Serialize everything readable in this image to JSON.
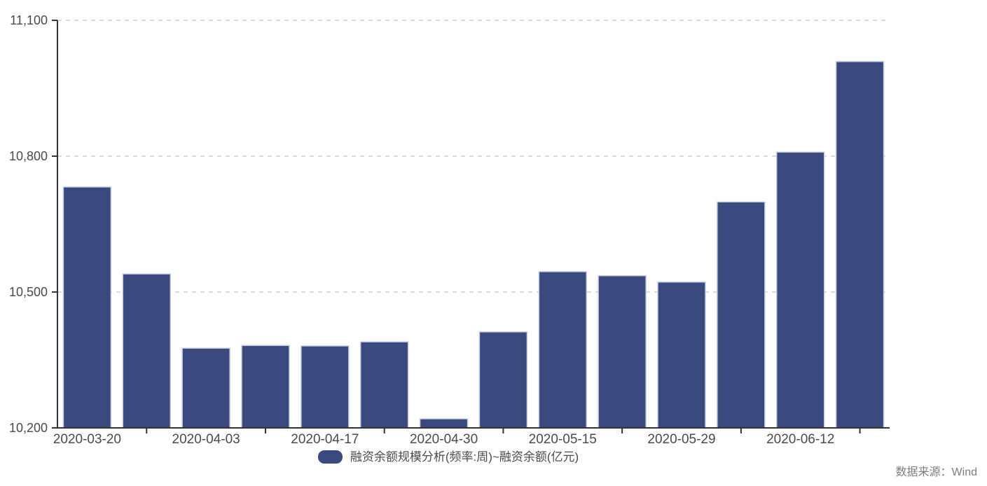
{
  "chart_data": {
    "type": "bar",
    "title": "",
    "series_name": "融资余额规模分析(频率:周)~融资余额(亿元)",
    "ylabel": "",
    "xlabel": "",
    "unit": "亿元",
    "values": [
      10732,
      10540,
      10376,
      10382,
      10381,
      10390,
      10220,
      10412,
      10545,
      10536,
      10522,
      10699,
      10809,
      11009
    ],
    "x_tick_labels": [
      "2020-03-20",
      "2020-04-03",
      "2020-04-17",
      "2020-04-30",
      "2020-05-15",
      "2020-05-29",
      "2020-06-12"
    ],
    "label_every_n_bars": 2,
    "y_ticks": [
      10200,
      10500,
      10800,
      11100
    ],
    "ylim": [
      10200,
      11100
    ],
    "grid": "horizontal-dashed",
    "legend_position": "bottom",
    "colors": {
      "bar_fill": "#3A497E",
      "bar_stroke": "#C7CDDF",
      "axis": "#333333",
      "tick_label": "#4A4A4A",
      "gridline": "#CFCFCF",
      "legend_text": "#4A4A4A",
      "source_text": "#7D7D7D"
    }
  },
  "legend": {
    "label": "融资余额规模分析(频率:周)~融资余额(亿元)"
  },
  "source_note": "数据来源：Wind"
}
